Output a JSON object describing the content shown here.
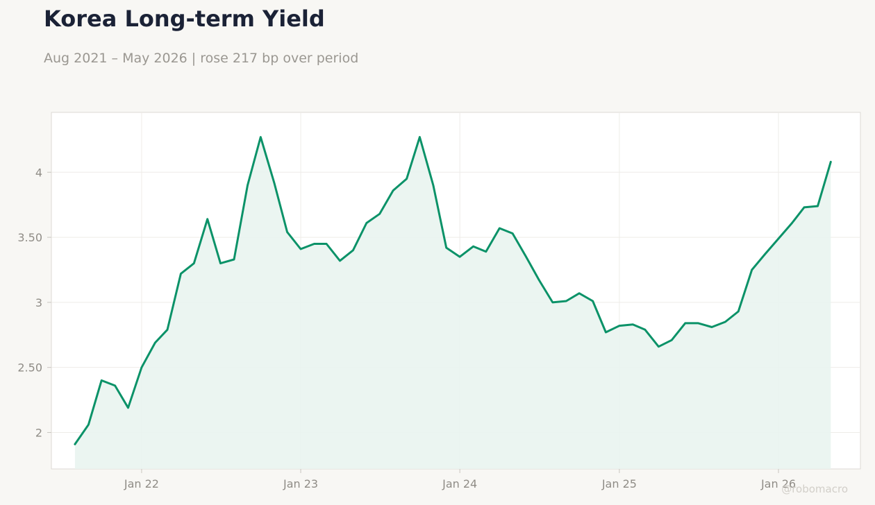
{
  "header": {
    "title": "Korea Long-term Yield",
    "subtitle": "Aug 2021 – May 2026 | rose 217 bp over period"
  },
  "watermark": "@robomacro",
  "colors": {
    "line": "#0b9268",
    "fill": "#e9f4f0",
    "title": "#1b2236",
    "muted": "#8f8c86",
    "background": "#f8f7f4",
    "plot_background": "#ffffff"
  },
  "chart_data": {
    "type": "area",
    "title": "Korea Long-term Yield",
    "subtitle": "Aug 2021 – May 2026 | rose 217 bp over period",
    "xlabel": "",
    "ylabel": "",
    "grid": true,
    "legend": "none",
    "ylim": [
      1.72,
      4.46
    ],
    "xlim": [
      "2021-06-08",
      "2026-07-08"
    ],
    "y_ticks": [
      {
        "value": 2,
        "label": "2"
      },
      {
        "value": 2.5,
        "label": "2.50"
      },
      {
        "value": 3,
        "label": "3"
      },
      {
        "value": 3.5,
        "label": "3.50"
      },
      {
        "value": 4,
        "label": "4"
      }
    ],
    "x_ticks": [
      {
        "value": "2022-01-01",
        "label": "Jan 22"
      },
      {
        "value": "2023-01-01",
        "label": "Jan 23"
      },
      {
        "value": "2024-01-01",
        "label": "Jan 24"
      },
      {
        "value": "2025-01-01",
        "label": "Jan 25"
      },
      {
        "value": "2026-01-01",
        "label": "Jan 26"
      }
    ],
    "series": [
      {
        "x": [
          "2021-08-01",
          "2021-09-01",
          "2021-10-01",
          "2021-11-01",
          "2021-12-01",
          "2022-01-01",
          "2022-02-01",
          "2022-03-01",
          "2022-04-01",
          "2022-05-01",
          "2022-06-01",
          "2022-07-01",
          "2022-08-01",
          "2022-09-01",
          "2022-10-01",
          "2022-11-01",
          "2022-12-01",
          "2023-01-01",
          "2023-02-01",
          "2023-03-01",
          "2023-04-01",
          "2023-05-01",
          "2023-06-01",
          "2023-07-01",
          "2023-08-01",
          "2023-09-01",
          "2023-10-01",
          "2023-11-01",
          "2023-12-01",
          "2024-01-01",
          "2024-02-01",
          "2024-03-01",
          "2024-04-01",
          "2024-05-01",
          "2024-06-01",
          "2024-07-01",
          "2024-08-01",
          "2024-09-01",
          "2024-10-01",
          "2024-11-01",
          "2024-12-01",
          "2025-01-01",
          "2025-02-01",
          "2025-03-01",
          "2025-04-01",
          "2025-05-01",
          "2025-06-01",
          "2025-07-01",
          "2025-08-01",
          "2025-09-01",
          "2025-10-01",
          "2025-11-01",
          "2025-12-01",
          "2026-01-01",
          "2026-02-01",
          "2026-03-01",
          "2026-04-01",
          "2026-05-01"
        ],
        "values": [
          1.91,
          2.06,
          2.4,
          2.36,
          2.19,
          2.5,
          2.69,
          2.79,
          3.22,
          3.3,
          3.64,
          3.3,
          3.33,
          3.9,
          4.27,
          3.92,
          3.54,
          3.41,
          3.45,
          3.45,
          3.32,
          3.4,
          3.61,
          3.68,
          3.86,
          3.95,
          4.27,
          3.9,
          3.42,
          3.35,
          3.43,
          3.39,
          3.57,
          3.53,
          3.35,
          3.17,
          3.0,
          3.01,
          3.07,
          3.01,
          2.77,
          2.82,
          2.83,
          2.79,
          2.66,
          2.71,
          2.84,
          2.84,
          2.81,
          2.85,
          2.93,
          3.25,
          3.37,
          3.49,
          3.61,
          3.73,
          3.74,
          4.08
        ]
      }
    ]
  }
}
